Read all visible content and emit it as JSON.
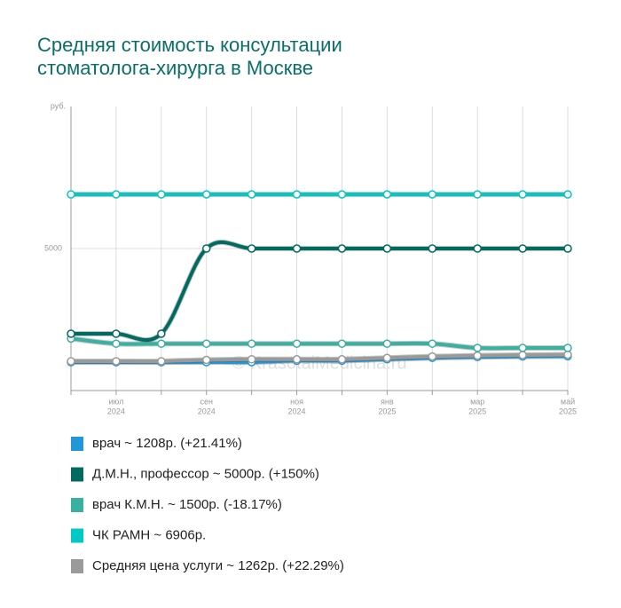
{
  "chart_data": {
    "type": "line",
    "title": [
      "Средняя стоимость консультации",
      "стоматолога-хирурга в Москве"
    ],
    "y_label": "руб.",
    "watermark": "© KrasotaiMedicina.ru",
    "categories": [
      null,
      {
        "month": "июл",
        "year": "2024"
      },
      null,
      {
        "month": "сен",
        "year": "2024"
      },
      null,
      {
        "month": "ноя",
        "year": "2024"
      },
      null,
      {
        "month": "янв",
        "year": "2025"
      },
      null,
      {
        "month": "мар",
        "year": "2025"
      },
      null,
      {
        "month": "май",
        "year": "2025"
      }
    ],
    "ylim": [
      0,
      10000
    ],
    "yticks": [
      5000
    ],
    "grid": true,
    "series": [
      {
        "name": "врач ~ 1208р. (+21.41%)",
        "color": "#2196d8",
        "values": [
          995,
          995,
          995,
          1000,
          1000,
          1050,
          1050,
          1100,
          1150,
          1180,
          1200,
          1208
        ]
      },
      {
        "name": "Д.М.Н., профессор ~ 5000р. (+150%)",
        "color": "#006b60",
        "values": [
          2000,
          2000,
          2000,
          5000,
          5000,
          5000,
          5000,
          5000,
          5000,
          5000,
          5000,
          5000
        ]
      },
      {
        "name": "врач К.М.Н. ~ 1500р. (-18.17%)",
        "color": "#38b0a2",
        "values": [
          1833,
          1650,
          1650,
          1650,
          1650,
          1650,
          1650,
          1650,
          1650,
          1500,
          1500,
          1500
        ]
      },
      {
        "name": "ЧК РАМН ~ 6906р.",
        "color": "#00c9c6",
        "values": [
          6906,
          6906,
          6906,
          6906,
          6906,
          6906,
          6906,
          6906,
          6906,
          6906,
          6906,
          6906
        ]
      },
      {
        "name": "Средняя цена услуги ~ 1262р. (+22.29%)",
        "color": "#9a9a9a",
        "values": [
          1032,
          1032,
          1032,
          1080,
          1100,
          1100,
          1100,
          1150,
          1200,
          1230,
          1250,
          1262
        ]
      }
    ]
  }
}
